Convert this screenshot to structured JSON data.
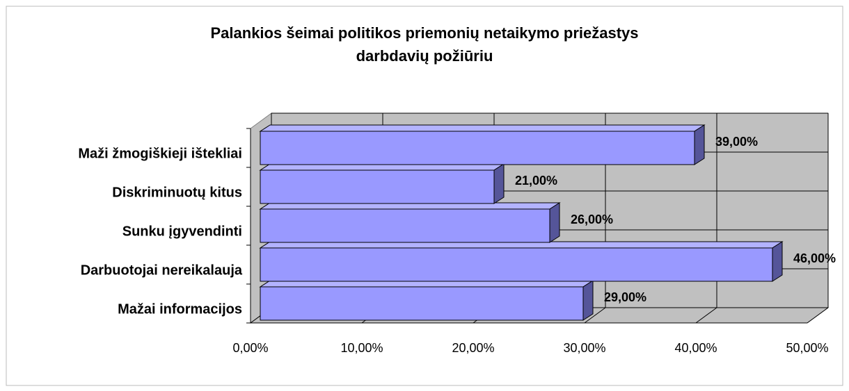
{
  "chart_data": {
    "type": "bar3d",
    "title": [
      "Palankios šeimai politikos priemonių netaikymo priežastys",
      "darbdavių požiūriu"
    ],
    "categories": [
      "Mažai informacijos",
      "Darbuotojai nereikalauja",
      "Sunku įgyvendinti",
      "Diskriminuotų kitus",
      "Maži žmogiškieji ištekliai"
    ],
    "values": [
      29,
      46,
      26,
      21,
      39
    ],
    "value_labels": [
      "29,00%",
      "46,00%",
      "26,00%",
      "21,00%",
      "39,00%"
    ],
    "color": "#9999ff",
    "xlim": [
      0,
      50
    ],
    "xticks": [
      {
        "value": 0,
        "label": "0,00%"
      },
      {
        "value": 10,
        "label": "10,00%"
      },
      {
        "value": 20,
        "label": "20,00%"
      },
      {
        "value": 30,
        "label": "30,00%"
      },
      {
        "value": 40,
        "label": "40,00%"
      },
      {
        "value": 50,
        "label": "50,00%"
      }
    ],
    "grid": true
  }
}
